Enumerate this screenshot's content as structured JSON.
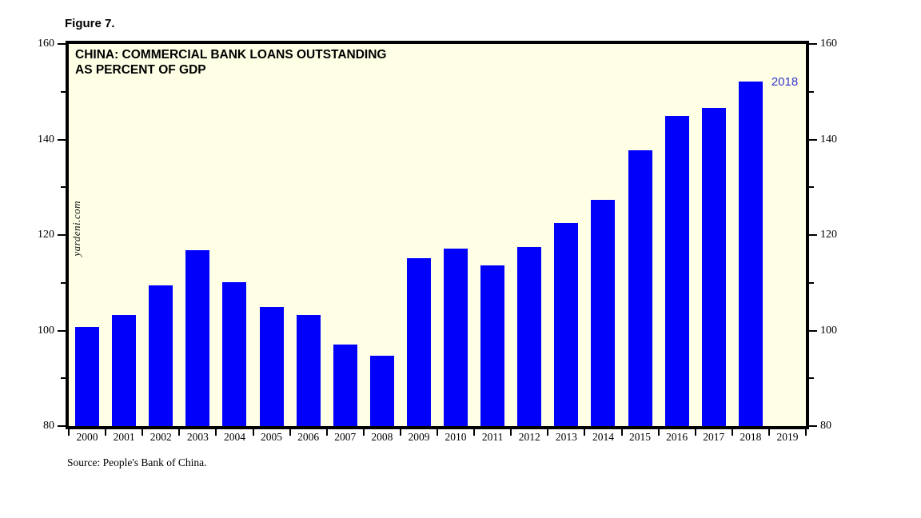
{
  "figure_label": "Figure 7.",
  "title_line1": "CHINA: COMMERCIAL BANK LOANS OUTSTANDING",
  "title_line2": "AS PERCENT OF GDP",
  "watermark": "yardeni.com",
  "source_note": "Source: People's Bank of China.",
  "peak_annotation": "2018",
  "colors": {
    "bar": "#0000fb",
    "plot_background": "#ffffe6",
    "frame": "#000000",
    "annotation_text": "#3333cc"
  },
  "chart_data": {
    "type": "bar",
    "title": "CHINA: COMMERCIAL BANK LOANS OUTSTANDING AS PERCENT OF GDP",
    "xlabel": "",
    "ylabel": "",
    "categories": [
      "2000",
      "2001",
      "2002",
      "2003",
      "2004",
      "2005",
      "2006",
      "2007",
      "2008",
      "2009",
      "2010",
      "2011",
      "2012",
      "2013",
      "2014",
      "2015",
      "2016",
      "2017",
      "2018",
      "2019"
    ],
    "values": [
      100.7,
      103.2,
      109.4,
      116.8,
      110.2,
      105.0,
      103.2,
      97.1,
      94.7,
      115.2,
      117.1,
      113.7,
      117.5,
      122.5,
      127.3,
      137.7,
      144.9,
      146.6,
      152.2,
      null
    ],
    "ylim": [
      80,
      160
    ],
    "yticks_major": [
      80,
      100,
      120,
      140,
      160
    ],
    "yticks_minor": [
      90,
      110,
      130,
      150
    ],
    "y_axis_labels": "both sides",
    "grid": false,
    "legend_position": "none",
    "annotations": [
      {
        "text": "2018",
        "category": "2018"
      }
    ]
  }
}
